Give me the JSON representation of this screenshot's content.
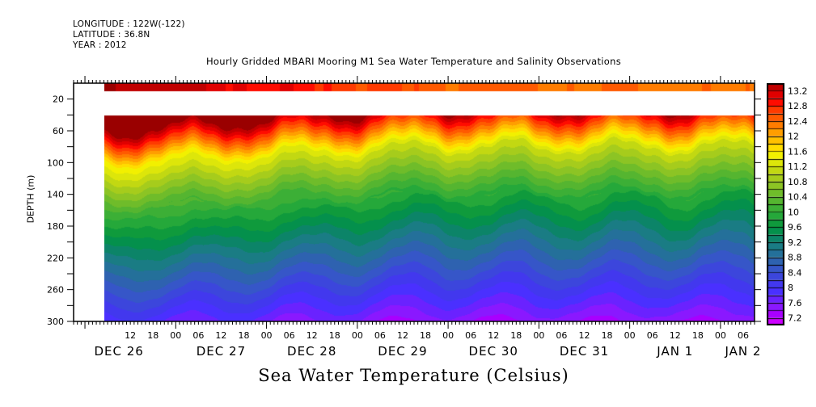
{
  "header": {
    "longitude_line": "LONGITUDE : 122W(-122)",
    "latitude_line": "LATITUDE : 36.8N",
    "year_line": "YEAR : 2012"
  },
  "chart_data": {
    "type": "heatmap",
    "title": "Hourly Gridded MBARI Mooring M1 Sea Water Temperature and Salinity Observations",
    "xlabel": "Sea Water Temperature (Celsius)",
    "ylabel": "DEPTH (m)",
    "y_axis": {
      "inverted": true,
      "range": [
        0,
        300
      ],
      "ticks": [
        20,
        60,
        100,
        140,
        180,
        220,
        260,
        300
      ],
      "tick_labels": [
        "20",
        "60",
        "100",
        "140",
        "180",
        "220",
        "260",
        "300"
      ]
    },
    "x_axis": {
      "range_hours_from_dec26_00": [
        -3,
        177
      ],
      "hour_ticks": [
        12,
        18,
        24,
        30,
        36,
        42,
        48,
        54,
        60,
        66,
        72,
        78,
        84,
        90,
        96,
        102,
        108,
        114,
        120,
        126,
        132,
        138,
        144,
        150,
        156,
        162,
        168,
        174
      ],
      "hour_tick_labels": [
        "12",
        "18",
        "00",
        "06",
        "12",
        "18",
        "00",
        "06",
        "12",
        "18",
        "00",
        "06",
        "12",
        "18",
        "00",
        "06",
        "12",
        "18",
        "00",
        "06",
        "12",
        "18",
        "00",
        "06",
        "12",
        "18",
        "00",
        "06"
      ],
      "day_labels": [
        {
          "label": "DEC 26",
          "hour": 9
        },
        {
          "label": "DEC 27",
          "hour": 36
        },
        {
          "label": "DEC 28",
          "hour": 60
        },
        {
          "label": "DEC 29",
          "hour": 84
        },
        {
          "label": "DEC 30",
          "hour": 108
        },
        {
          "label": "DEC 31",
          "hour": 132
        },
        {
          "label": "JAN  1",
          "hour": 156
        },
        {
          "label": "JAN  2",
          "hour": 174
        }
      ]
    },
    "data_coverage": {
      "time_start_hour": 14.8,
      "time_end_hour": 177,
      "surface_layer_depth_m": [
        0,
        10
      ],
      "gap_depth_m": [
        10,
        40
      ],
      "main_layer_depth_m": [
        40,
        300
      ]
    },
    "colorbar": {
      "min": 7.0,
      "max": 13.4,
      "step": 0.2,
      "tick_labels": [
        "13.2",
        "12.8",
        "12.4",
        "12",
        "11.6",
        "11.2",
        "10.8",
        "10.4",
        "10",
        "9.6",
        "9.2",
        "8.8",
        "8.4",
        "8",
        "7.6",
        "7.2"
      ],
      "tick_values": [
        13.2,
        12.8,
        12.4,
        12.0,
        11.6,
        11.2,
        10.8,
        10.4,
        10.0,
        9.6,
        9.2,
        8.8,
        8.4,
        8.0,
        7.6,
        7.2
      ],
      "colors_low_to_high": [
        "#cc00ff",
        "#a800ff",
        "#8a18ff",
        "#6a22ff",
        "#4a30ff",
        "#4238ee",
        "#3c46dc",
        "#3656c8",
        "#2e62b0",
        "#24709a",
        "#1a7c84",
        "#0c8468",
        "#04904c",
        "#0f9a3c",
        "#25a83a",
        "#3caf36",
        "#55b530",
        "#6fbc2a",
        "#8cc424",
        "#a6cc1c",
        "#c2d812",
        "#dde60a",
        "#f2f000",
        "#ffdc00",
        "#ffc000",
        "#ff9e00",
        "#ff7c00",
        "#ff5a00",
        "#ff3a00",
        "#ff0c00",
        "#e00000",
        "#c00000",
        "#9a0000"
      ]
    },
    "depth_profile_summary": [
      {
        "depth_m": 5,
        "temp_c_range": [
          12.2,
          13.4
        ]
      },
      {
        "depth_m": 45,
        "temp_c_range": [
          11.8,
          13.2
        ]
      },
      {
        "depth_m": 60,
        "temp_c_range": [
          11.0,
          13.0
        ]
      },
      {
        "depth_m": 100,
        "temp_c_range": [
          10.2,
          11.4
        ]
      },
      {
        "depth_m": 140,
        "temp_c_range": [
          9.6,
          10.2
        ]
      },
      {
        "depth_m": 180,
        "temp_c_range": [
          8.8,
          9.4
        ]
      },
      {
        "depth_m": 220,
        "temp_c_range": [
          8.2,
          8.8
        ]
      },
      {
        "depth_m": 260,
        "temp_c_range": [
          7.8,
          8.2
        ]
      },
      {
        "depth_m": 295,
        "temp_c_range": [
          7.2,
          7.8
        ]
      }
    ]
  }
}
